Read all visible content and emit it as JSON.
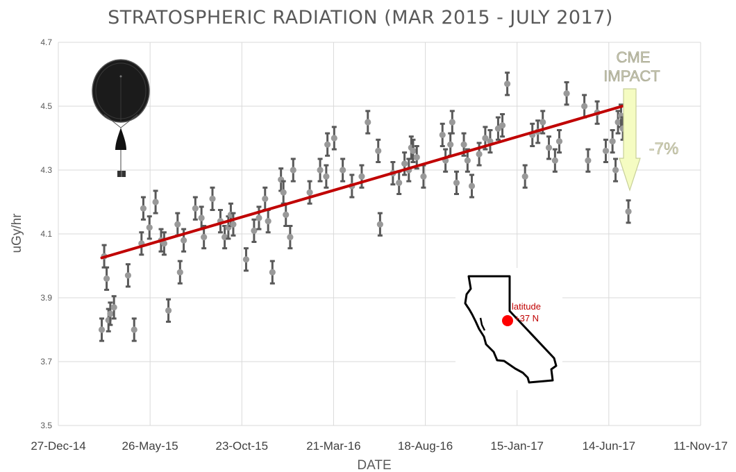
{
  "chart_data": {
    "type": "scatter",
    "title": "STRATOSPHERIC RADIATION (MAR 2015 - JULY 2017)",
    "xlabel": "DATE",
    "ylabel": "uGy/hr",
    "ylim": [
      3.5,
      4.7
    ],
    "yticks": [
      "3.5",
      "3.7",
      "3.9",
      "4.1",
      "4.3",
      "4.5",
      "4.7"
    ],
    "xticks": [
      "27-Dec-14",
      "26-May-15",
      "23-Oct-15",
      "21-Mar-16",
      "18-Aug-16",
      "15-Jan-17",
      "14-Jun-17",
      "11-Nov-17"
    ],
    "xlim": [
      "2014-12-27",
      "2017-11-11"
    ],
    "grid": true,
    "error_bar": 0.035,
    "trend": {
      "start": [
        "2015-03-08",
        4.025
      ],
      "end": [
        "2017-07-06",
        4.5
      ]
    },
    "points": [
      [
        "2015-03-08",
        3.8
      ],
      [
        "2015-03-12",
        4.03
      ],
      [
        "2015-03-16",
        3.96
      ],
      [
        "2015-03-19",
        3.83
      ],
      [
        "2015-03-22",
        3.85
      ],
      [
        "2015-03-28",
        3.87
      ],
      [
        "2015-04-20",
        3.97
      ],
      [
        "2015-04-30",
        3.8
      ],
      [
        "2015-05-12",
        4.07
      ],
      [
        "2015-05-15",
        4.18
      ],
      [
        "2015-05-25",
        4.12
      ],
      [
        "2015-06-04",
        4.2
      ],
      [
        "2015-06-13",
        4.08
      ],
      [
        "2015-06-18",
        4.07
      ],
      [
        "2015-06-25",
        3.86
      ],
      [
        "2015-07-10",
        4.13
      ],
      [
        "2015-07-14",
        3.98
      ],
      [
        "2015-07-20",
        4.08
      ],
      [
        "2015-08-08",
        4.18
      ],
      [
        "2015-08-18",
        4.15
      ],
      [
        "2015-08-22",
        4.09
      ],
      [
        "2015-09-05",
        4.21
      ],
      [
        "2015-09-18",
        4.14
      ],
      [
        "2015-09-25",
        4.09
      ],
      [
        "2015-10-01",
        4.12
      ],
      [
        "2015-10-05",
        4.16
      ],
      [
        "2015-10-09",
        4.13
      ],
      [
        "2015-10-30",
        4.02
      ],
      [
        "2015-11-12",
        4.11
      ],
      [
        "2015-11-20",
        4.15
      ],
      [
        "2015-11-30",
        4.21
      ],
      [
        "2015-12-05",
        4.14
      ],
      [
        "2015-12-12",
        3.98
      ],
      [
        "2015-12-26",
        4.27
      ],
      [
        "2015-12-30",
        4.23
      ],
      [
        "2016-01-03",
        4.16
      ],
      [
        "2016-01-10",
        4.09
      ],
      [
        "2016-01-15",
        4.3
      ],
      [
        "2016-02-11",
        4.23
      ],
      [
        "2016-02-28",
        4.3
      ],
      [
        "2016-03-09",
        4.28
      ],
      [
        "2016-03-11",
        4.38
      ],
      [
        "2016-03-22",
        4.4
      ],
      [
        "2016-04-05",
        4.3
      ],
      [
        "2016-04-20",
        4.25
      ],
      [
        "2016-05-06",
        4.28
      ],
      [
        "2016-05-16",
        4.45
      ],
      [
        "2016-06-02",
        4.36
      ],
      [
        "2016-06-05",
        4.13
      ],
      [
        "2016-06-26",
        4.29
      ],
      [
        "2016-07-06",
        4.26
      ],
      [
        "2016-07-15",
        4.32
      ],
      [
        "2016-07-22",
        4.3
      ],
      [
        "2016-07-26",
        4.37
      ],
      [
        "2016-07-29",
        4.36
      ],
      [
        "2016-08-04",
        4.34
      ],
      [
        "2016-08-15",
        4.28
      ],
      [
        "2016-09-15",
        4.41
      ],
      [
        "2016-09-20",
        4.33
      ],
      [
        "2016-09-28",
        4.38
      ],
      [
        "2016-10-01",
        4.45
      ],
      [
        "2016-10-08",
        4.26
      ],
      [
        "2016-10-20",
        4.38
      ],
      [
        "2016-10-26",
        4.33
      ],
      [
        "2016-11-02",
        4.25
      ],
      [
        "2016-11-14",
        4.35
      ],
      [
        "2016-11-24",
        4.4
      ],
      [
        "2016-12-02",
        4.39
      ],
      [
        "2016-12-15",
        4.43
      ],
      [
        "2016-12-22",
        4.44
      ],
      [
        "2016-12-30",
        4.57
      ],
      [
        "2017-01-28",
        4.28
      ],
      [
        "2017-02-09",
        4.41
      ],
      [
        "2017-02-18",
        4.42
      ],
      [
        "2017-02-26",
        4.45
      ],
      [
        "2017-03-08",
        4.37
      ],
      [
        "2017-03-18",
        4.33
      ],
      [
        "2017-03-25",
        4.39
      ],
      [
        "2017-04-06",
        4.54
      ],
      [
        "2017-05-05",
        4.5
      ],
      [
        "2017-05-11",
        4.33
      ],
      [
        "2017-05-26",
        4.48
      ],
      [
        "2017-06-09",
        4.36
      ],
      [
        "2017-06-20",
        4.39
      ],
      [
        "2017-06-25",
        4.3
      ],
      [
        "2017-06-29",
        4.45
      ],
      [
        "2017-07-04",
        4.47
      ],
      [
        "2017-07-07",
        4.43
      ],
      [
        "2017-07-16",
        4.17
      ]
    ],
    "annotations": {
      "cme_line1": "CME",
      "cme_line2": "IMPACT",
      "drop": "-7%",
      "latitude_line1": "latitude",
      "latitude_line2": "+37 N"
    },
    "colors": {
      "points": "#999999",
      "error_bars": "#595959",
      "trend": "#c00000",
      "grid": "#d9d9d9",
      "arrow_fill": "#f5fcc2",
      "marker": "#ff0000"
    },
    "icons": [
      "balloon-icon",
      "california-map-icon"
    ]
  }
}
